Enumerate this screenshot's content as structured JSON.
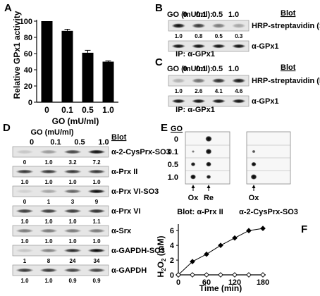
{
  "panels": {
    "A": {
      "letter": "A",
      "chart_data": {
        "type": "bar",
        "categories": [
          "0",
          "0.1",
          "0.5",
          "1.0"
        ],
        "values": [
          100,
          88,
          61,
          50
        ],
        "errors": [
          0,
          2,
          3,
          1
        ],
        "title": "",
        "ylabel": "Relative GPx1 activity",
        "xlabel": "GO (mU/ml)",
        "ylim": [
          0,
          100
        ],
        "yticks": [
          0,
          20,
          40,
          60,
          80,
          100
        ],
        "grid": false,
        "bar_color": "#000000"
      }
    },
    "B": {
      "letter": "B",
      "go_label": "GO (mU/ml):",
      "doses": [
        "0",
        "0.1",
        "0.5",
        "1.0"
      ],
      "blot_header": "Blot",
      "blots": [
        {
          "label": "HRP-streptavidin (SeH)",
          "quant": [
            "1.0",
            "0.8",
            "0.5",
            "0.3"
          ],
          "intensities": [
            1.0,
            0.8,
            0.5,
            0.3
          ]
        },
        {
          "label": "α-GPx1",
          "quant": [],
          "intensities": [
            1,
            1,
            1,
            1
          ]
        }
      ],
      "ip": "IP: α-GPx1"
    },
    "C": {
      "letter": "C",
      "go_label": "GO (mU/ml):",
      "doses": [
        "0",
        "0.1",
        "0.5",
        "1.0"
      ],
      "blot_header": "Blot",
      "blots": [
        {
          "label": "HRP-streptavidin (DHA)",
          "quant": [
            "1.0",
            "2.6",
            "4.1",
            "4.6"
          ],
          "intensities": [
            0.25,
            0.55,
            0.85,
            0.95
          ]
        },
        {
          "label": "α-GPx1",
          "quant": [],
          "intensities": [
            1,
            1,
            1,
            1
          ]
        }
      ],
      "ip": "IP: α-GPx1"
    },
    "D": {
      "letter": "D",
      "go_label": "GO (mU/ml)",
      "doses": [
        "0",
        "0.1",
        "0.5",
        "1.0"
      ],
      "blot_header": "Blot",
      "blots": [
        {
          "label": "α-2-CysPrx-SO3",
          "quant": [
            "0",
            "1.0",
            "3.2",
            "7.2"
          ],
          "intensities": [
            0.15,
            0.35,
            0.75,
            1.0
          ]
        },
        {
          "label": "α-Prx II",
          "quant": [
            "1.0",
            "1.0",
            "1.0",
            "1.0"
          ],
          "intensities": [
            0.8,
            0.8,
            0.8,
            0.8
          ]
        },
        {
          "label": "α-Prx VI-SO3",
          "quant": [
            "0",
            "1",
            "3",
            "9"
          ],
          "intensities": [
            0.1,
            0.3,
            0.6,
            1.0
          ]
        },
        {
          "label": "α-Prx VI",
          "quant": [
            "1.0",
            "1.0",
            "1.0",
            "1.1"
          ],
          "intensities": [
            0.8,
            0.8,
            0.8,
            0.85
          ]
        },
        {
          "label": "α-Srx",
          "quant": [
            "1.0",
            "1.0",
            "1.0",
            "1.0"
          ],
          "intensities": [
            0.5,
            0.5,
            0.5,
            0.5
          ]
        },
        {
          "label": "α-GAPDH-SO3",
          "quant": [
            "1",
            "8",
            "24",
            "34"
          ],
          "intensities": [
            0.15,
            0.45,
            0.85,
            1.0
          ]
        },
        {
          "label": "α-GAPDH",
          "quant": [
            "1.0",
            "1.0",
            "0.9",
            "0.9"
          ],
          "intensities": [
            0.8,
            0.8,
            0.75,
            0.75
          ]
        }
      ]
    },
    "E": {
      "letter": "E",
      "go_label": "GO",
      "doses": [
        "0",
        "0.1",
        "0.5",
        "1.0"
      ],
      "left_cols": [
        "Ox",
        "Re"
      ],
      "right_cols": [
        "Ox"
      ],
      "left_spots": [
        [
          0.0,
          1.0
        ],
        [
          0.15,
          0.9
        ],
        [
          0.55,
          0.75
        ],
        [
          0.8,
          0.55
        ]
      ],
      "right_spots": [
        [
          0.0
        ],
        [
          0.3
        ],
        [
          0.65
        ],
        [
          0.9
        ]
      ],
      "blot_left": "Blot: α-Prx II",
      "blot_right": "α-2-CysPrx-SO3"
    },
    "F": {
      "letter": "F",
      "chart_data": {
        "type": "line",
        "title": "",
        "xlabel": "Time (min)",
        "ylabel": "H2O2 (mM)",
        "ylabel_main": "H",
        "ylabel_sub1": "2",
        "ylabel_mid": "O",
        "ylabel_sub2": "2",
        "ylabel_unit": " (mM)",
        "xlim": [
          0,
          180
        ],
        "ylim": [
          0,
          6.5
        ],
        "xticks": [
          0,
          30,
          60,
          90,
          120,
          150,
          180
        ],
        "xtick_labels": [
          "0",
          "",
          "60",
          "",
          "120",
          "",
          "180"
        ],
        "yticks": [
          0,
          2,
          4,
          6
        ],
        "grid": false,
        "series": [
          {
            "x": [
              0,
              30,
              60,
              90,
              120,
              150,
              180
            ],
            "y": [
              0,
              1.8,
              2.8,
              4.0,
              5.0,
              6.0,
              6.3
            ],
            "marker": "filled-diamond",
            "color": "#000000"
          },
          {
            "x": [
              0,
              30,
              60,
              90,
              120,
              150,
              180
            ],
            "y": [
              0,
              0,
              0,
              0,
              0,
              0,
              0
            ],
            "marker": "open-diamond",
            "color": "#000000"
          }
        ]
      }
    }
  }
}
